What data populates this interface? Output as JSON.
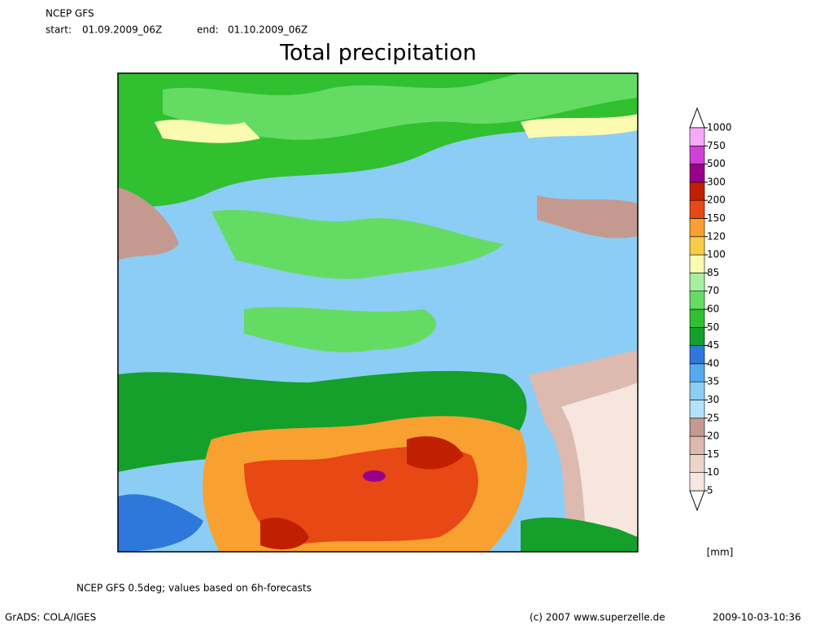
{
  "header": {
    "model": "NCEP GFS",
    "start_label": "start:",
    "start": "01.09.2009_06Z",
    "end_label": "end:",
    "end": "01.10.2009_06Z"
  },
  "title": "Total precipitation",
  "colorbar": {
    "levels": [
      5,
      10,
      15,
      20,
      25,
      30,
      35,
      40,
      45,
      50,
      60,
      70,
      85,
      100,
      120,
      150,
      200,
      300,
      500,
      750,
      1000
    ],
    "colors": [
      "#f6e6de",
      "#ecd4ca",
      "#dcbab0",
      "#c49a90",
      "#b4e2fa",
      "#8ccdf5",
      "#56aaf0",
      "#2e78dc",
      "#14a02a",
      "#30c030",
      "#64dc64",
      "#a4f0a0",
      "#fafab0",
      "#f8cc48",
      "#f8a030",
      "#e84814",
      "#c02000",
      "#98008c",
      "#d040d8",
      "#f8a8f8"
    ],
    "unit": "[mm]"
  },
  "footer": {
    "note": "NCEP GFS 0.5deg; values based on 6h-forecasts",
    "grads": "GrADS: COLA/IGES",
    "copyright": "(c) 2007 www.superzelle.de",
    "timestamp": "2009-10-03-10:36"
  }
}
